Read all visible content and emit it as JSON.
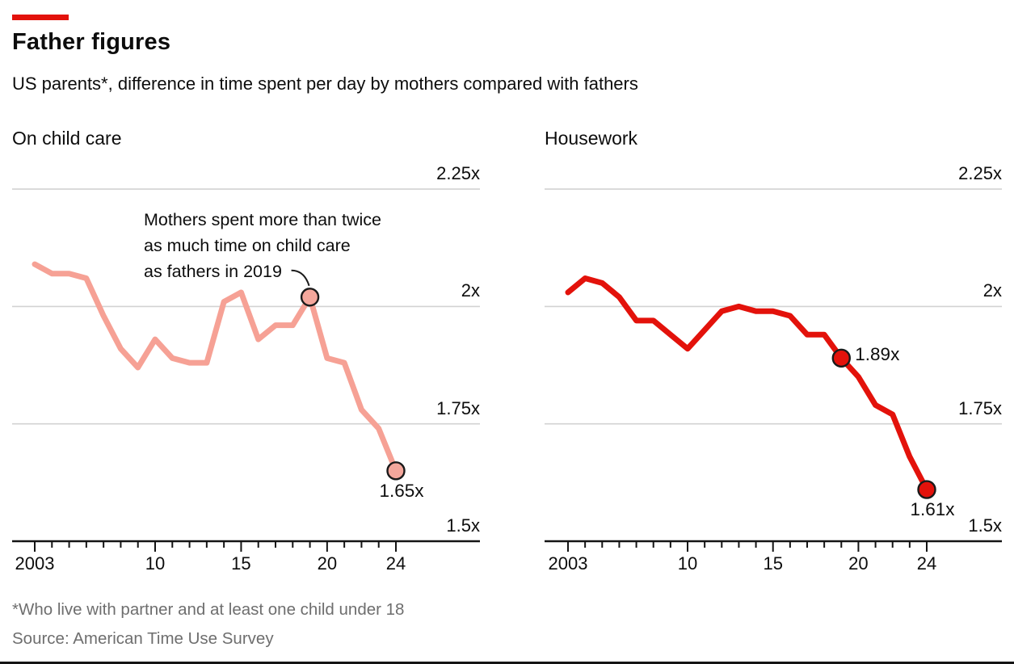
{
  "header": {
    "title": "Father figures",
    "subtitle": "US parents*, difference in time spent per day by mothers compared with fathers"
  },
  "footer": {
    "footnote": "*Who live with partner and at least one child under 18",
    "source": "Source: American Time Use Survey"
  },
  "colors": {
    "accent_red": "#e3120b",
    "childcare_line": "#f6a195",
    "childcare_marker_fill": "#f4a79c",
    "housework_line": "#e3120b",
    "housework_marker_fill": "#e3120b",
    "marker_outline": "#1a1a1a",
    "gridline": "#d2d2d2",
    "axis": "#141414",
    "footnote_gray": "#6e6e6e"
  },
  "chart_data": [
    {
      "type": "line",
      "title": "On child care",
      "unit": "x (ratio, mothers vs fathers)",
      "x": [
        2003,
        2004,
        2005,
        2006,
        2007,
        2008,
        2009,
        2010,
        2011,
        2012,
        2013,
        2014,
        2015,
        2016,
        2017,
        2018,
        2019,
        2020,
        2021,
        2022,
        2023,
        2024
      ],
      "values": [
        2.09,
        2.07,
        2.07,
        2.06,
        1.98,
        1.91,
        1.87,
        1.93,
        1.89,
        1.88,
        1.88,
        2.01,
        2.03,
        1.93,
        1.96,
        1.96,
        2.02,
        1.89,
        1.88,
        1.78,
        1.74,
        1.65
      ],
      "ylim": [
        1.5,
        2.25
      ],
      "grid": "horizontal",
      "yticks": [
        {
          "label": "2.25x",
          "value": 2.25
        },
        {
          "label": "2x",
          "value": 2.0
        },
        {
          "label": "1.75x",
          "value": 1.75
        },
        {
          "label": "1.5x",
          "value": 1.5
        }
      ],
      "xticks": [
        {
          "label": "2003",
          "year": 2003
        },
        {
          "label": "10",
          "year": 2010
        },
        {
          "label": "15",
          "year": 2015
        },
        {
          "label": "20",
          "year": 2020
        },
        {
          "label": "24",
          "year": 2024
        }
      ],
      "markers": [
        {
          "year": 2019,
          "value": 2.02,
          "label": "",
          "placement": "none"
        },
        {
          "year": 2024,
          "value": 1.65,
          "label": "1.65x",
          "placement": "below"
        }
      ],
      "annotation": {
        "lines": [
          "Mothers spent more than twice",
          "as much time on child care",
          "as fathers in 2019"
        ],
        "points_to_year": 2019
      }
    },
    {
      "type": "line",
      "title": "Housework",
      "unit": "x (ratio, mothers vs fathers)",
      "x": [
        2003,
        2004,
        2005,
        2006,
        2007,
        2008,
        2009,
        2010,
        2011,
        2012,
        2013,
        2014,
        2015,
        2016,
        2017,
        2018,
        2019,
        2020,
        2021,
        2022,
        2023,
        2024
      ],
      "values": [
        2.03,
        2.06,
        2.05,
        2.02,
        1.97,
        1.97,
        1.94,
        1.91,
        1.95,
        1.99,
        2.0,
        1.99,
        1.99,
        1.98,
        1.94,
        1.94,
        1.89,
        1.85,
        1.79,
        1.77,
        1.68,
        1.61
      ],
      "ylim": [
        1.5,
        2.25
      ],
      "grid": "horizontal",
      "yticks": [
        {
          "label": "2.25x",
          "value": 2.25
        },
        {
          "label": "2x",
          "value": 2.0
        },
        {
          "label": "1.75x",
          "value": 1.75
        },
        {
          "label": "1.5x",
          "value": 1.5
        }
      ],
      "xticks": [
        {
          "label": "2003",
          "year": 2003
        },
        {
          "label": "10",
          "year": 2010
        },
        {
          "label": "15",
          "year": 2015
        },
        {
          "label": "20",
          "year": 2020
        },
        {
          "label": "24",
          "year": 2024
        }
      ],
      "markers": [
        {
          "year": 2019,
          "value": 1.89,
          "label": "1.89x",
          "placement": "right"
        },
        {
          "year": 2024,
          "value": 1.61,
          "label": "1.61x",
          "placement": "below"
        }
      ]
    }
  ]
}
